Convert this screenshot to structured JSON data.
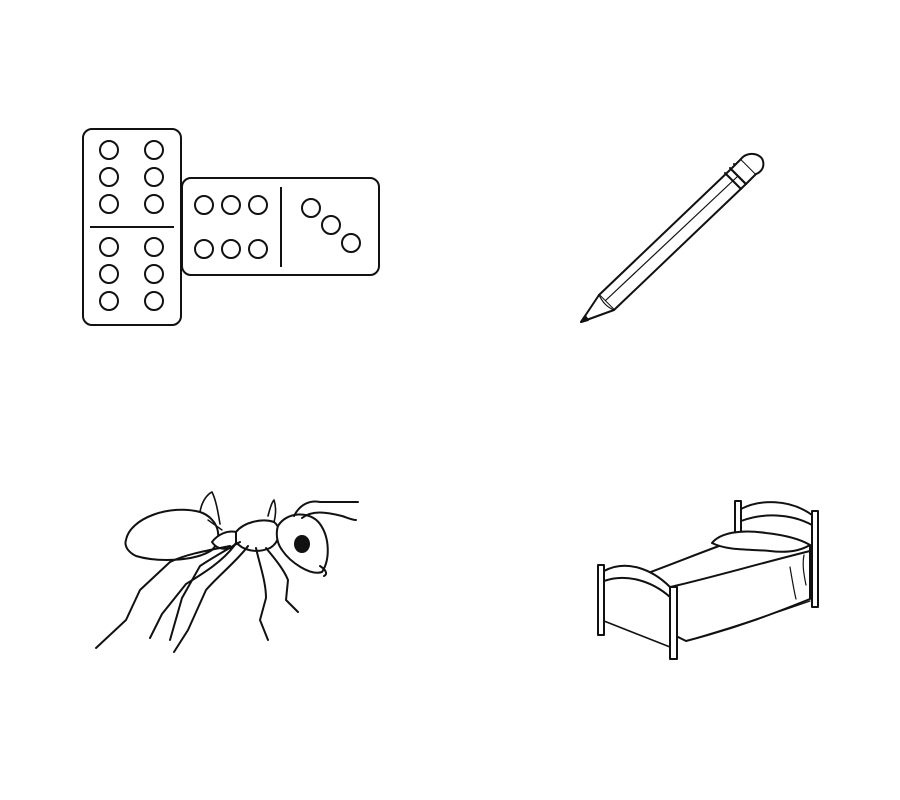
{
  "worksheet": {
    "background_color": "#ffffff",
    "ink_color": "#111111",
    "pictures": [
      {
        "id": "dominoes",
        "depicts": "dominoes",
        "icon": "dominoes-icon"
      },
      {
        "id": "pencil",
        "depicts": "pencil",
        "icon": "pencil-icon"
      },
      {
        "id": "ant",
        "depicts": "ant",
        "icon": "ant-icon"
      },
      {
        "id": "bed",
        "depicts": "bed",
        "icon": "bed-icon"
      }
    ],
    "dominoes": {
      "vertical_tile": {
        "top_pips": 6,
        "bottom_pips": 6
      },
      "horizontal_tile": {
        "left_pips": 6,
        "right_pips": 3
      }
    }
  }
}
